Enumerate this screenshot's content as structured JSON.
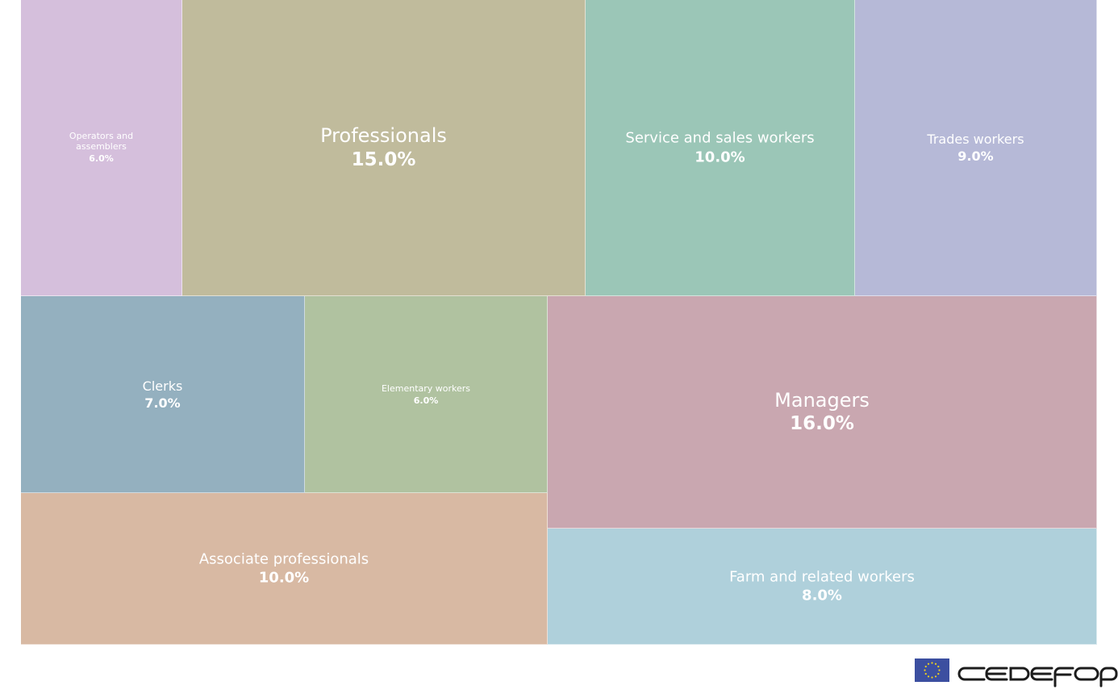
{
  "chart_data": {
    "type": "treemap",
    "unit": "%",
    "tiles": [
      {
        "name": "Operators and assemblers",
        "value": 6.0,
        "value_label": "6.0%",
        "color": "#d5bfdc"
      },
      {
        "name": "Professionals",
        "value": 15.0,
        "value_label": "15.0%",
        "color": "#c0bb9c"
      },
      {
        "name": "Service and sales workers",
        "value": 10.0,
        "value_label": "10.0%",
        "color": "#9bc6b7"
      },
      {
        "name": "Trades workers",
        "value": 9.0,
        "value_label": "9.0%",
        "color": "#b6b9d7"
      },
      {
        "name": "Clerks",
        "value": 7.0,
        "value_label": "7.0%",
        "color": "#94b0bf"
      },
      {
        "name": "Elementary workers",
        "value": 6.0,
        "value_label": "6.0%",
        "color": "#b0c2a0"
      },
      {
        "name": "Managers",
        "value": 16.0,
        "value_label": "16.0%",
        "color": "#c9a7b0"
      },
      {
        "name": "Associate professionals",
        "value": 10.0,
        "value_label": "10.0%",
        "color": "#d8b9a3"
      },
      {
        "name": "Farm and related workers",
        "value": 8.0,
        "value_label": "8.0%",
        "color": "#afd0db"
      }
    ]
  },
  "branding": {
    "logo_text": "CEDEFOP",
    "logo_icon": "eu-flag-icon",
    "flag_color": "#3c4fa0",
    "star_color": "#f2d21b"
  }
}
